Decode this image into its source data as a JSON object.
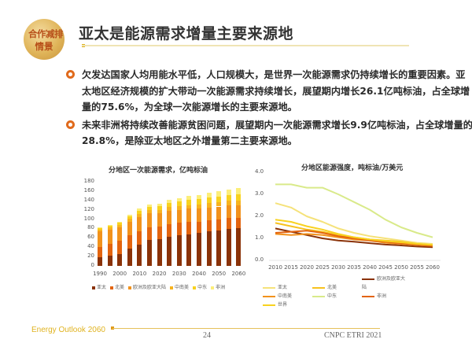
{
  "header": {
    "logo_line1": "合作减排",
    "logo_line2": "情景",
    "title": "亚太是能源需求增量主要来源地"
  },
  "bullets": [
    {
      "icon": "bullet-circle-icon",
      "text": "欠发达国家人均用能水平低，人口规模大，是世界一次能源需求仍持续增长的重要因素。亚太地区经济规模的扩大带动一次能源需求持续增长，展望期内增长26.1亿吨标油，占全球增量的75.6%，为全球一次能源增长的主要来源地。"
    },
    {
      "icon": "bullet-circle-icon",
      "text": "未来非洲将持续改善能源贫困问题，展望期内一次能源需求增长9.9亿吨标油，占全球增量的28.8%，是除亚太地区之外增量第二主要来源地。"
    }
  ],
  "chart_data": [
    {
      "type": "bar",
      "stacked": true,
      "title": "分地区一次能源需求，亿吨标油",
      "xlabel": "",
      "ylabel": "",
      "ylim": [
        0,
        180
      ],
      "yticks": [
        0,
        20,
        40,
        60,
        80,
        100,
        120,
        140,
        160,
        180
      ],
      "categories": [
        1990,
        1995,
        2000,
        2005,
        2010,
        2015,
        2020,
        2025,
        2030,
        2035,
        2040,
        2045,
        2050,
        2055,
        2060
      ],
      "xtick_labels": [
        "1990",
        "2000",
        "2010",
        "2020",
        "2030",
        "2040",
        "2050",
        "2060"
      ],
      "series": [
        {
          "name": "亚太",
          "color": "#8a3208",
          "values": [
            18,
            22,
            26,
            37,
            46,
            55,
            57,
            62,
            65,
            68,
            70,
            74,
            76,
            79,
            81
          ]
        },
        {
          "name": "北美",
          "color": "#e3640f",
          "values": [
            23,
            25,
            27,
            28,
            28,
            28,
            27,
            27,
            27,
            26,
            25,
            24,
            24,
            23,
            22
          ]
        },
        {
          "name": "欧洲及欧亚大陆",
          "color": "#f2921c",
          "values": [
            33,
            30,
            30,
            30,
            30,
            29,
            29,
            29,
            28,
            28,
            28,
            27,
            27,
            27,
            27
          ]
        },
        {
          "name": "中南美",
          "color": "#f7b31f",
          "values": [
            4,
            5,
            5,
            6,
            7,
            7,
            7,
            8,
            8,
            8,
            9,
            9,
            9,
            10,
            10
          ]
        },
        {
          "name": "中东",
          "color": "#f8d21f",
          "values": [
            2,
            3,
            4,
            5,
            7,
            8,
            8,
            9,
            10,
            11,
            11,
            12,
            12,
            13,
            13
          ]
        },
        {
          "name": "非洲",
          "color": "#fcee7a",
          "values": [
            2,
            2,
            3,
            4,
            4,
            5,
            5,
            6,
            7,
            8,
            9,
            10,
            11,
            12,
            13
          ]
        }
      ],
      "legend_position": "bottom"
    },
    {
      "type": "line",
      "title": "分地区能源强度，吨标油/万美元",
      "xlabel": "",
      "ylabel": "",
      "ylim": [
        0,
        4.0
      ],
      "yticks": [
        "0.0",
        "1.0",
        "2.0",
        "3.0",
        "4.0"
      ],
      "x": [
        2010,
        2015,
        2020,
        2025,
        2030,
        2035,
        2040,
        2045,
        2050,
        2055,
        2060
      ],
      "series": [
        {
          "name": "亚太",
          "color": "#f5e27a",
          "values": [
            2.6,
            2.4,
            2.0,
            1.75,
            1.45,
            1.25,
            1.1,
            1.0,
            0.9,
            0.8,
            0.75
          ]
        },
        {
          "name": "北美",
          "color": "#f7c21e",
          "values": [
            1.7,
            1.55,
            1.4,
            1.3,
            1.15,
            1.05,
            0.95,
            0.9,
            0.85,
            0.75,
            0.7
          ]
        },
        {
          "name": "欧洲及欧亚大陆",
          "color": "#8a3208",
          "values": [
            1.45,
            1.3,
            1.15,
            1.0,
            0.9,
            0.85,
            0.78,
            0.72,
            0.68,
            0.63,
            0.6
          ]
        },
        {
          "name": "中南美",
          "color": "#f2921c",
          "values": [
            1.2,
            1.15,
            1.2,
            1.15,
            1.05,
            0.95,
            0.9,
            0.8,
            0.75,
            0.7,
            0.65
          ]
        },
        {
          "name": "中东",
          "color": "#d9ea8a",
          "values": [
            3.45,
            3.45,
            3.3,
            3.3,
            3.0,
            2.65,
            2.3,
            1.85,
            1.5,
            1.25,
            1.05
          ]
        },
        {
          "name": "非洲",
          "color": "#e3640f",
          "values": [
            1.25,
            1.3,
            1.35,
            1.25,
            1.1,
            1.0,
            0.9,
            0.85,
            0.78,
            0.72,
            0.65
          ]
        },
        {
          "name": "世界",
          "color": "#f8d21f",
          "values": [
            1.85,
            1.75,
            1.55,
            1.4,
            1.2,
            1.05,
            0.95,
            0.88,
            0.82,
            0.75,
            0.7
          ]
        }
      ],
      "legend_position": "bottom"
    }
  ],
  "footer": {
    "left": "Energy Outlook 2060",
    "page": "24",
    "org": "CNPC ETRI 2021"
  }
}
